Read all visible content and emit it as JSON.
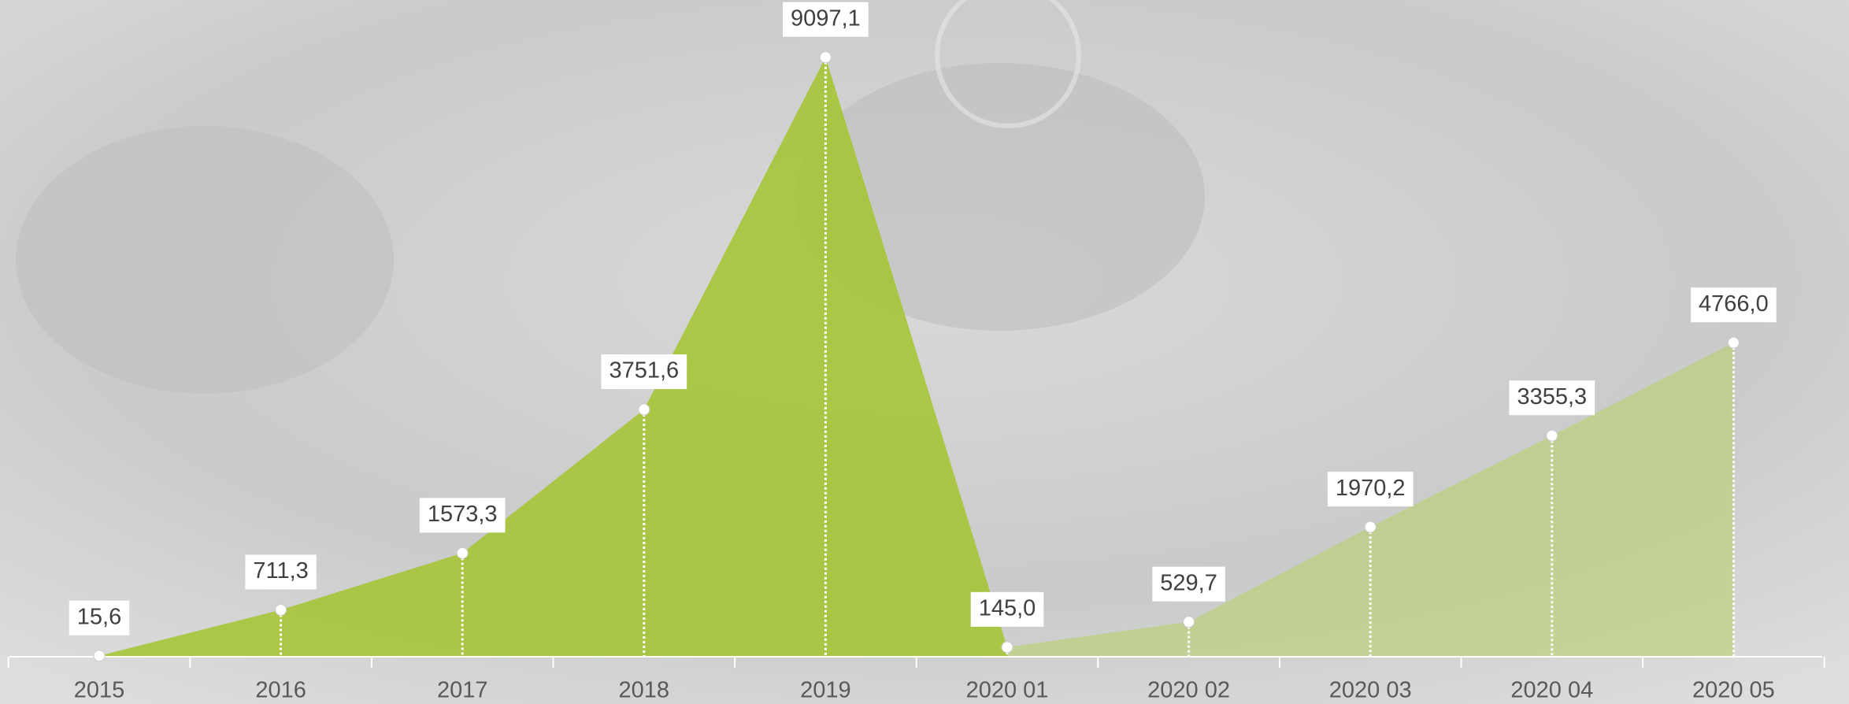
{
  "chart_data": {
    "type": "area",
    "categories": [
      "2015",
      "2016",
      "2017",
      "2018",
      "2019",
      "2020 01",
      "2020 02",
      "2020 03",
      "2020 04",
      "2020 05"
    ],
    "values": [
      15.6,
      711.3,
      1573.3,
      3751.6,
      9097.1,
      145.0,
      529.7,
      1970.2,
      3355.3,
      4766.0
    ],
    "value_labels": [
      "15,6",
      "711,3",
      "1573,3",
      "3751,6",
      "9097,1",
      "145,0",
      "529,7",
      "1970,2",
      "3355,3",
      "4766,0"
    ],
    "colors": [
      "#a3c42f",
      "#b9d16a"
    ],
    "split_index": 5,
    "ylim": [
      0,
      9500
    ]
  }
}
